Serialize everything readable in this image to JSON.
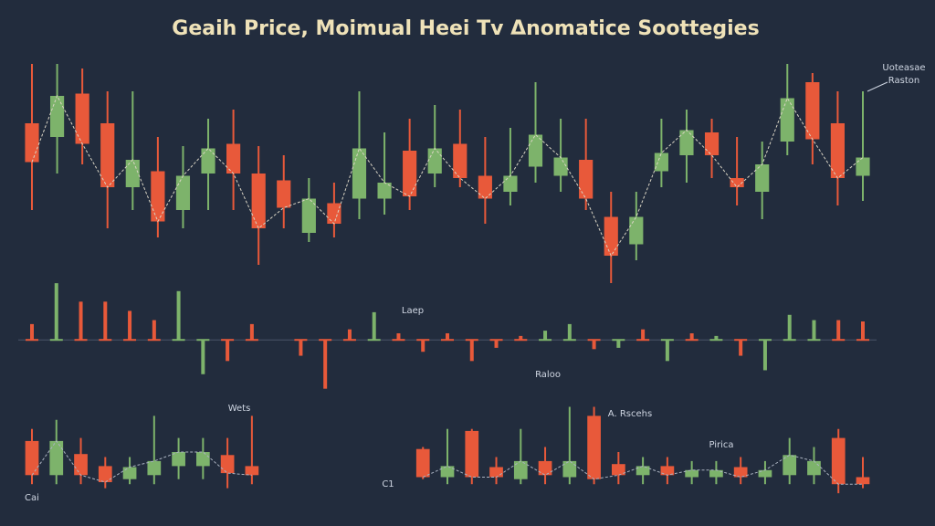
{
  "chart_data": [
    {
      "type": "candlestick",
      "title": "Geaih Price, Moimual Heei Tv Δnomatice Soottegies",
      "up_color": "#7db36b",
      "down_color": "#e8593a",
      "line_color": "#d9d4c4",
      "ylim": [
        0,
        100
      ],
      "open": [
        70,
        64,
        83,
        70,
        42,
        49,
        32,
        48,
        61,
        48,
        45,
        22,
        35,
        37,
        37,
        58,
        48,
        61,
        47,
        40,
        51,
        47,
        54,
        29,
        17,
        49,
        56,
        66,
        46,
        40,
        62,
        88,
        70,
        47
      ],
      "close": [
        53,
        82,
        61,
        42,
        54,
        27,
        47,
        59,
        48,
        24,
        33,
        37,
        26,
        59,
        44,
        38,
        59,
        46,
        37,
        47,
        65,
        55,
        37,
        12,
        29,
        57,
        67,
        56,
        42,
        52,
        81,
        63,
        46,
        55
      ],
      "high": [
        96,
        96,
        94,
        84,
        84,
        64,
        60,
        72,
        76,
        60,
        56,
        46,
        44,
        84,
        66,
        72,
        78,
        76,
        64,
        68,
        88,
        72,
        72,
        40,
        40,
        72,
        76,
        72,
        64,
        62,
        96,
        92,
        84,
        84
      ],
      "low": [
        32,
        48,
        52,
        24,
        32,
        20,
        24,
        32,
        32,
        8,
        24,
        18,
        20,
        28,
        30,
        32,
        42,
        42,
        26,
        34,
        44,
        40,
        32,
        0,
        10,
        42,
        44,
        46,
        34,
        28,
        56,
        52,
        34,
        36
      ]
    },
    {
      "type": "bar",
      "ylim": [
        -40,
        50
      ],
      "values": [
        12,
        43,
        29,
        29,
        22,
        15,
        37,
        -26,
        -16,
        12,
        null,
        -12,
        -37,
        8,
        21,
        5,
        -9,
        5,
        -16,
        -6,
        3,
        7,
        12,
        -7,
        -6,
        8,
        -16,
        5,
        3,
        -12,
        -23,
        19,
        15,
        15,
        14
      ],
      "colors": [
        "#e8593a",
        "#7db36b",
        "#e8593a",
        "#e8593a",
        "#e8593a",
        "#e8593a",
        "#7db36b",
        "#7db36b",
        "#e8593a",
        "#e8593a",
        null,
        "#e8593a",
        "#e8593a",
        "#e8593a",
        "#7db36b",
        "#e8593a",
        "#e8593a",
        "#e8593a",
        "#e8593a",
        "#e8593a",
        "#e8593a",
        "#7db36b",
        "#7db36b",
        "#e8593a",
        "#7db36b",
        "#e8593a",
        "#7db36b",
        "#e8593a",
        "#7db36b",
        "#e8593a",
        "#7db36b",
        "#7db36b",
        "#7db36b",
        "#e8593a",
        "#e8593a"
      ]
    },
    {
      "type": "candlestick",
      "up_color": "#7db36b",
      "down_color": "#e8593a",
      "line_color": "#aab2c0",
      "ylim": [
        0,
        100
      ],
      "open": [
        61,
        27,
        48,
        36,
        23,
        27,
        36,
        36,
        47,
        36,
        null,
        null,
        null,
        null,
        null,
        null,
        53,
        25,
        71,
        35,
        23,
        41,
        25,
        86,
        38,
        27,
        36,
        25,
        25,
        35,
        25,
        27,
        27,
        64,
        25
      ],
      "close": [
        27,
        61,
        27,
        20,
        35,
        41,
        50,
        50,
        29,
        27,
        null,
        null,
        null,
        null,
        null,
        null,
        25,
        36,
        25,
        25,
        41,
        27,
        41,
        23,
        27,
        36,
        27,
        32,
        32,
        25,
        32,
        47,
        41,
        18,
        18
      ],
      "high": [
        73,
        82,
        64,
        45,
        45,
        86,
        64,
        64,
        64,
        86,
        null,
        null,
        null,
        null,
        null,
        null,
        55,
        73,
        73,
        45,
        73,
        55,
        95,
        95,
        50,
        45,
        45,
        41,
        41,
        45,
        41,
        64,
        55,
        73,
        45
      ],
      "low": [
        18,
        18,
        18,
        14,
        18,
        18,
        23,
        23,
        14,
        18,
        null,
        null,
        null,
        null,
        null,
        null,
        23,
        18,
        18,
        18,
        18,
        18,
        18,
        18,
        18,
        18,
        18,
        18,
        18,
        18,
        18,
        18,
        18,
        9,
        14
      ]
    }
  ],
  "annotations": [
    "Uoteasae",
    "Raston",
    "Laep",
    "Raloo",
    "A. Rscehs",
    "Wets",
    "Pirica",
    "C1",
    "Cai"
  ]
}
